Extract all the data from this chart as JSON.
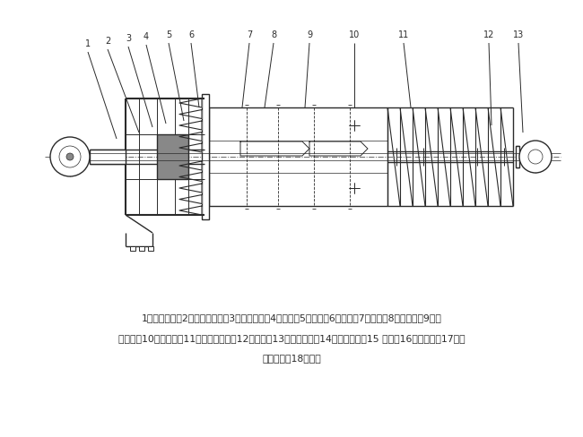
{
  "bg_color": "#ffffff",
  "line_color": "#2a2a2a",
  "text_color": "#2a2a2a",
  "fig_width": 6.5,
  "fig_height": 4.88,
  "dpi": 100,
  "caption_line1": "1一限位装置；2一防带杆装置；3一上端法兰；4一挡环；5一转环；6一芊杆；7一键条；8一加压台；9一导",
  "caption_line2": "向斜块；10一分水盘；11一下减震装置；12一方头；13一钓杆销轴；14一减震总成；15 一杆；16一中间杆；17一防",
  "caption_line3": "带杆托盘；18一扁头",
  "font_size_caption": 7.8
}
